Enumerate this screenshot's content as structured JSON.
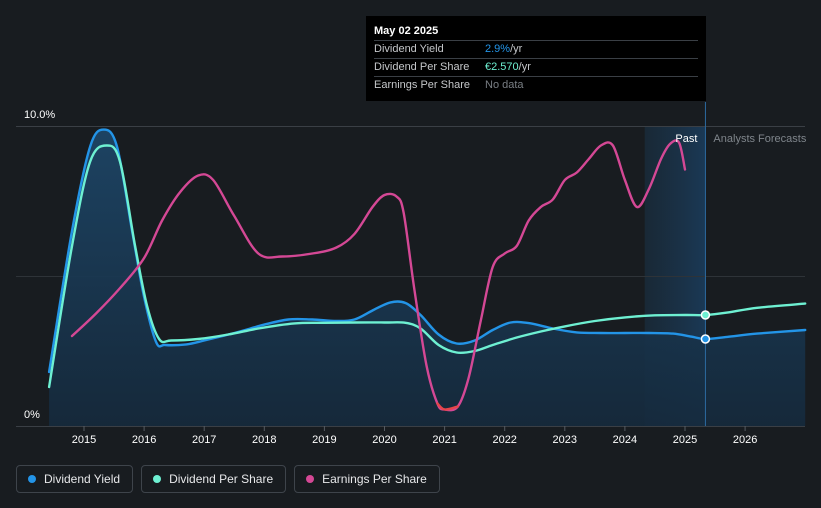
{
  "chart_data": {
    "type": "line",
    "yaxis": {
      "min_label": "0%",
      "max_label": "10.0%",
      "range": [
        0,
        10
      ]
    },
    "x_ticks": [
      "2015",
      "2016",
      "2017",
      "2018",
      "2019",
      "2020",
      "2021",
      "2022",
      "2023",
      "2024",
      "2025",
      "2026"
    ],
    "xlim": [
      2014.4,
      2027.0
    ],
    "past_label": "Past",
    "forecast_label": "Analysts Forecasts",
    "past_shade_start": 2024.33,
    "divider_x": 2025.34,
    "series": [
      {
        "name": "Dividend Yield",
        "color": "#2394e7",
        "area": true,
        "points": [
          [
            2014.42,
            1.8
          ],
          [
            2014.8,
            6.5
          ],
          [
            2015.1,
            9.3
          ],
          [
            2015.33,
            9.88
          ],
          [
            2015.55,
            9.3
          ],
          [
            2015.8,
            6.5
          ],
          [
            2016.0,
            4.3
          ],
          [
            2016.2,
            2.8
          ],
          [
            2016.35,
            2.7
          ],
          [
            2016.7,
            2.72
          ],
          [
            2017.0,
            2.85
          ],
          [
            2017.5,
            3.1
          ],
          [
            2018.0,
            3.38
          ],
          [
            2018.4,
            3.55
          ],
          [
            2018.8,
            3.55
          ],
          [
            2019.2,
            3.5
          ],
          [
            2019.5,
            3.55
          ],
          [
            2019.8,
            3.85
          ],
          [
            2020.1,
            4.12
          ],
          [
            2020.35,
            4.1
          ],
          [
            2020.6,
            3.7
          ],
          [
            2020.9,
            3.05
          ],
          [
            2021.2,
            2.75
          ],
          [
            2021.5,
            2.85
          ],
          [
            2021.8,
            3.2
          ],
          [
            2022.1,
            3.45
          ],
          [
            2022.4,
            3.43
          ],
          [
            2022.8,
            3.25
          ],
          [
            2023.2,
            3.12
          ],
          [
            2023.6,
            3.1
          ],
          [
            2024.0,
            3.1
          ],
          [
            2024.4,
            3.1
          ],
          [
            2024.8,
            3.08
          ],
          [
            2025.1,
            2.98
          ],
          [
            2025.34,
            2.9
          ],
          [
            2025.7,
            2.97
          ],
          [
            2026.2,
            3.08
          ],
          [
            2027.0,
            3.2
          ]
        ],
        "marker_x": 2025.34
      },
      {
        "name": "Dividend Per Share",
        "color": "#6ef0d2",
        "area": false,
        "points": [
          [
            2014.42,
            1.3
          ],
          [
            2014.8,
            6.0
          ],
          [
            2015.1,
            8.8
          ],
          [
            2015.38,
            9.35
          ],
          [
            2015.6,
            8.8
          ],
          [
            2015.85,
            6.0
          ],
          [
            2016.05,
            4.0
          ],
          [
            2016.25,
            2.9
          ],
          [
            2016.45,
            2.85
          ],
          [
            2016.9,
            2.9
          ],
          [
            2017.4,
            3.05
          ],
          [
            2017.9,
            3.25
          ],
          [
            2018.5,
            3.42
          ],
          [
            2019.0,
            3.44
          ],
          [
            2019.5,
            3.45
          ],
          [
            2020.0,
            3.45
          ],
          [
            2020.35,
            3.44
          ],
          [
            2020.6,
            3.25
          ],
          [
            2020.9,
            2.7
          ],
          [
            2021.2,
            2.45
          ],
          [
            2021.5,
            2.5
          ],
          [
            2021.8,
            2.7
          ],
          [
            2022.2,
            2.95
          ],
          [
            2022.6,
            3.15
          ],
          [
            2023.0,
            3.32
          ],
          [
            2023.5,
            3.5
          ],
          [
            2024.0,
            3.62
          ],
          [
            2024.5,
            3.69
          ],
          [
            2025.0,
            3.7
          ],
          [
            2025.34,
            3.7
          ],
          [
            2025.7,
            3.78
          ],
          [
            2026.2,
            3.94
          ],
          [
            2027.0,
            4.08
          ]
        ],
        "marker_x": 2025.34
      },
      {
        "name": "Earnings Per Share",
        "color": "#d44895",
        "area": false,
        "points": [
          [
            2014.8,
            3.0
          ],
          [
            2015.2,
            3.75
          ],
          [
            2015.6,
            4.6
          ],
          [
            2016.0,
            5.6
          ],
          [
            2016.3,
            6.85
          ],
          [
            2016.6,
            7.8
          ],
          [
            2016.9,
            8.35
          ],
          [
            2017.15,
            8.2
          ],
          [
            2017.5,
            7.0
          ],
          [
            2017.9,
            5.75
          ],
          [
            2018.3,
            5.65
          ],
          [
            2018.8,
            5.75
          ],
          [
            2019.2,
            5.95
          ],
          [
            2019.5,
            6.4
          ],
          [
            2019.8,
            7.3
          ],
          [
            2020.0,
            7.7
          ],
          [
            2020.2,
            7.65
          ],
          [
            2020.32,
            7.1
          ],
          [
            2020.5,
            4.5
          ],
          [
            2020.7,
            2.0
          ],
          [
            2020.88,
            0.75
          ],
          [
            2021.0,
            0.55
          ],
          [
            2021.22,
            0.65
          ],
          [
            2021.4,
            1.6
          ],
          [
            2021.6,
            3.5
          ],
          [
            2021.8,
            5.3
          ],
          [
            2022.0,
            5.75
          ],
          [
            2022.2,
            6.0
          ],
          [
            2022.4,
            6.85
          ],
          [
            2022.6,
            7.3
          ],
          [
            2022.8,
            7.55
          ],
          [
            2023.0,
            8.2
          ],
          [
            2023.2,
            8.45
          ],
          [
            2023.4,
            8.9
          ],
          [
            2023.6,
            9.35
          ],
          [
            2023.8,
            9.35
          ],
          [
            2024.0,
            8.2
          ],
          [
            2024.2,
            7.3
          ],
          [
            2024.4,
            7.9
          ],
          [
            2024.6,
            8.9
          ],
          [
            2024.75,
            9.4
          ],
          [
            2024.9,
            9.45
          ],
          [
            2025.0,
            8.55
          ]
        ],
        "marker_x": null
      }
    ]
  },
  "tooltip": {
    "date": "May 02 2025",
    "rows": [
      {
        "label": "Dividend Yield",
        "value": "2.9%",
        "unit": " /yr",
        "color": "#2394e7"
      },
      {
        "label": "Dividend Per Share",
        "value": "€2.570",
        "unit": " /yr",
        "color": "#6ef0d2"
      },
      {
        "label": "Earnings Per Share",
        "value": "No data",
        "unit": "",
        "color": "#7a7f85"
      }
    ]
  },
  "legend": [
    {
      "label": "Dividend Yield",
      "color": "#2394e7"
    },
    {
      "label": "Dividend Per Share",
      "color": "#6ef0d2"
    },
    {
      "label": "Earnings Per Share",
      "color": "#d44895"
    }
  ]
}
